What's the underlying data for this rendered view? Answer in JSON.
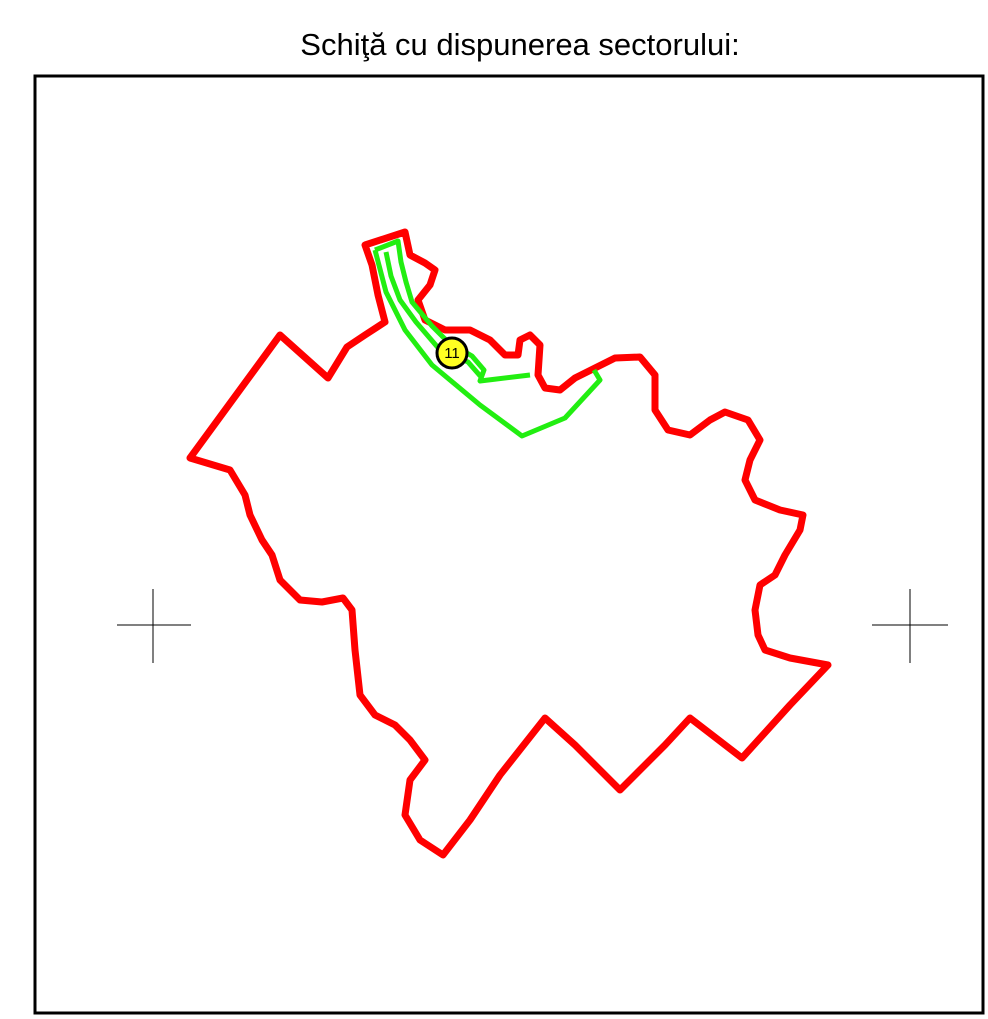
{
  "title": "Schiţă cu dispunerea sectorului:",
  "marker": {
    "label": "11"
  }
}
